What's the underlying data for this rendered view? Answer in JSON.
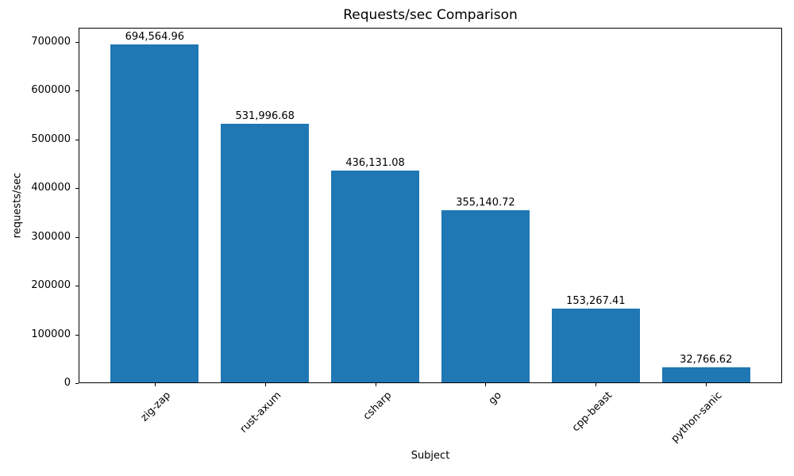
{
  "chart_data": {
    "type": "bar",
    "title": "Requests/sec Comparison",
    "xlabel": "Subject",
    "ylabel": "requests/sec",
    "categories": [
      "zig-zap",
      "rust-axum",
      "csharp",
      "go",
      "cpp-beast",
      "python-sanic"
    ],
    "values": [
      694564.96,
      531996.68,
      436131.08,
      355140.72,
      153267.41,
      32766.62
    ],
    "bar_value_labels": [
      "694,564.96",
      "531,996.68",
      "436,131.08",
      "355,140.72",
      "153,267.41",
      "32,766.62"
    ],
    "yticks": [
      0,
      100000,
      200000,
      300000,
      400000,
      500000,
      600000,
      700000
    ],
    "ytick_labels": [
      "0",
      "100000",
      "200000",
      "300000",
      "400000",
      "500000",
      "600000",
      "700000"
    ],
    "ylim": [
      0,
      729293
    ],
    "xlim": [
      -0.69,
      5.69
    ],
    "bar_width": 0.8,
    "bar_color": "#1f77b4",
    "grid": false,
    "legend": "none"
  }
}
